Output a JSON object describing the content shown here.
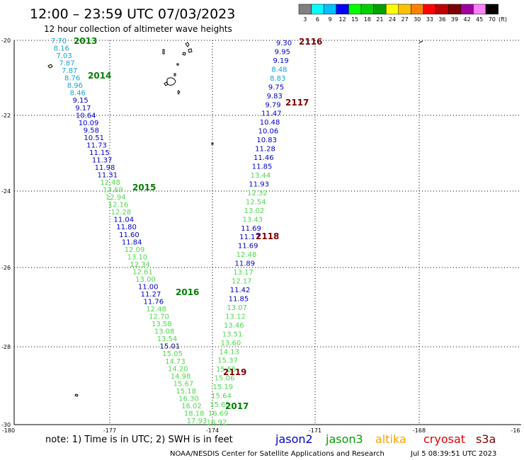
{
  "title": "12:00 – 23:59 UTC 07/03/2023",
  "subtitle": "12 hour collection of altimeter wave heights",
  "colorbar": {
    "unit": "(ft)",
    "labels": [
      "3",
      "6",
      "9",
      "12",
      "15",
      "18",
      "21",
      "24",
      "27",
      "30",
      "33",
      "36",
      "39",
      "42",
      "45",
      "70"
    ],
    "colors": [
      "#808080",
      "#00ffff",
      "#00c0ff",
      "#0000ff",
      "#00ff00",
      "#00d000",
      "#00a000",
      "#ffff00",
      "#ffc000",
      "#ff8000",
      "#ff0000",
      "#c00000",
      "#800000",
      "#a000a0",
      "#ff80ff",
      "#000000"
    ]
  },
  "axes": {
    "lat_labels": [
      "-20",
      "-22",
      "-24",
      "-26",
      "-28",
      "-30"
    ],
    "lon_labels": [
      "-180",
      "-177",
      "-174",
      "-171",
      "-168",
      "-16"
    ]
  },
  "track_colors": {
    "c": "#1a9fd0",
    "b": "#0000c8",
    "g": "#4ed84e",
    "d": "#000080"
  },
  "pass_ids": {
    "p2013": "2013",
    "p2014": "2014",
    "p2015": "2015",
    "p2016": "2016",
    "p2017": "2017",
    "p2116": "2116",
    "p2117": "2117",
    "p2118": "2118",
    "p2119": "2119"
  },
  "pass_colors": {
    "green": "#008000",
    "red": "#800000"
  },
  "track_a": [
    [
      "7.70",
      "c"
    ],
    [
      "8.16",
      "c"
    ],
    [
      "7.03",
      "c"
    ],
    [
      "7.87",
      "c"
    ],
    [
      "7.87",
      "c"
    ],
    [
      "8.76",
      "c"
    ],
    [
      "8.96",
      "c"
    ],
    [
      "8.46",
      "c"
    ],
    [
      "9.15",
      "b"
    ],
    [
      "9.17",
      "b"
    ],
    [
      "10.64",
      "b"
    ],
    [
      "10.09",
      "b"
    ],
    [
      "9.58",
      "b"
    ],
    [
      "10.51",
      "b"
    ],
    [
      "11.73",
      "b"
    ],
    [
      "11.15",
      "b"
    ],
    [
      "11.37",
      "b"
    ],
    [
      "11.98",
      "b"
    ],
    [
      "11.31",
      "b"
    ],
    [
      "12.48",
      "g"
    ],
    [
      "13.69",
      "g"
    ],
    [
      "12.94",
      "g"
    ],
    [
      "12.16",
      "g"
    ],
    [
      "12.28",
      "g"
    ],
    [
      "11.04",
      "b"
    ],
    [
      "11.80",
      "b"
    ],
    [
      "11.60",
      "b"
    ],
    [
      "11.84",
      "b"
    ],
    [
      "12.09",
      "g"
    ],
    [
      "13.10",
      "g"
    ],
    [
      "12.34",
      "g"
    ],
    [
      "12.61",
      "g"
    ],
    [
      "13.00",
      "g"
    ],
    [
      "11.00",
      "b"
    ],
    [
      "11.27",
      "b"
    ],
    [
      "11.76",
      "b"
    ],
    [
      "12.48",
      "g"
    ],
    [
      "12.70",
      "g"
    ],
    [
      "13.58",
      "g"
    ],
    [
      "13.08",
      "g"
    ],
    [
      "13.54",
      "g"
    ],
    [
      "15.01",
      "d"
    ],
    [
      "15.05",
      "g"
    ],
    [
      "14.73",
      "g"
    ],
    [
      "14.20",
      "g"
    ],
    [
      "14.98",
      "g"
    ],
    [
      "15.67",
      "g"
    ],
    [
      "15.18",
      "g"
    ],
    [
      "16.30",
      "g"
    ],
    [
      "16.02",
      "g"
    ],
    [
      "18.18",
      "g"
    ],
    [
      "17.93",
      "g"
    ]
  ],
  "track_b": [
    [
      "9.30",
      "b"
    ],
    [
      "9.95",
      "b"
    ],
    [
      "9.19",
      "b"
    ],
    [
      "8.48",
      "c"
    ],
    [
      "8.83",
      "c"
    ],
    [
      "9.75",
      "b"
    ],
    [
      "9.83",
      "b"
    ],
    [
      "9.79",
      "b"
    ],
    [
      "11.47",
      "b"
    ],
    [
      "10.48",
      "b"
    ],
    [
      "10.06",
      "b"
    ],
    [
      "10.83",
      "b"
    ],
    [
      "11.28",
      "b"
    ],
    [
      "11.46",
      "b"
    ],
    [
      "11.85",
      "b"
    ],
    [
      "13.44",
      "g"
    ],
    [
      "11.93",
      "b"
    ],
    [
      "12.32",
      "g"
    ],
    [
      "12.54",
      "g"
    ],
    [
      "13.02",
      "g"
    ],
    [
      "13.43",
      "g"
    ],
    [
      "11.69",
      "b"
    ],
    [
      "11.17",
      "b"
    ],
    [
      "11.69",
      "b"
    ],
    [
      "12.48",
      "g"
    ],
    [
      "11.89",
      "b"
    ],
    [
      "13.17",
      "g"
    ],
    [
      "12.17",
      "g"
    ],
    [
      "11.42",
      "b"
    ],
    [
      "11.85",
      "b"
    ],
    [
      "13.07",
      "g"
    ],
    [
      "13.12",
      "g"
    ],
    [
      "13.46",
      "g"
    ],
    [
      "13.51",
      "g"
    ],
    [
      "13.60",
      "g"
    ],
    [
      "14.13",
      "g"
    ],
    [
      "15.37",
      "g"
    ],
    [
      "15.55",
      "g"
    ],
    [
      "15.06",
      "g"
    ],
    [
      "15.19",
      "g"
    ],
    [
      "15.64",
      "g"
    ],
    [
      "15.65",
      "g"
    ],
    [
      "16.69",
      "g"
    ],
    [
      "16.92",
      "g"
    ]
  ],
  "footer": {
    "note": "note:  1) Time is in UTC;  2) SWH is in feet",
    "satellites": [
      {
        "name": "jason2",
        "color": "#0000c8"
      },
      {
        "name": "jason3",
        "color": "#00a000"
      },
      {
        "name": "altika",
        "color": "#ffa000"
      },
      {
        "name": "cryosat",
        "color": "#e00000"
      },
      {
        "name": "s3a",
        "color": "#800000"
      }
    ],
    "credit": "NOAA/NESDIS Center for Satellite Applications and Research",
    "timestamp": "Jul  5 08:39:51 UTC 2023"
  }
}
